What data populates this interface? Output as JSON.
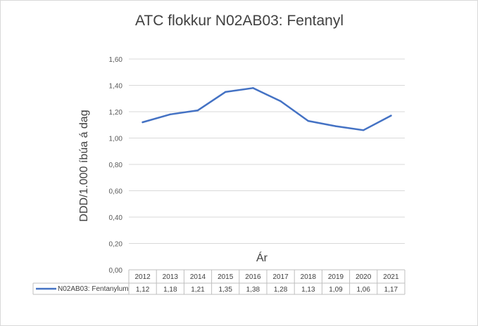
{
  "chart_data": {
    "type": "line",
    "title": "ATC flokkur N02AB03: Fentanyl",
    "xlabel": "Ár",
    "ylabel": "DDD/1.000 íbúa á dag",
    "ylim": [
      0,
      1.6
    ],
    "yticks": [
      "0,00",
      "0,20",
      "0,40",
      "0,60",
      "0,80",
      "1,00",
      "1,20",
      "1,40",
      "1,60"
    ],
    "grid": true,
    "legend": "data-table",
    "categories": [
      "2012",
      "2013",
      "2014",
      "2015",
      "2016",
      "2017",
      "2018",
      "2019",
      "2020",
      "2021"
    ],
    "series": [
      {
        "name": "N02AB03: Fentanylum",
        "color": "#4472c4",
        "values": [
          1.12,
          1.18,
          1.21,
          1.35,
          1.38,
          1.28,
          1.13,
          1.09,
          1.06,
          1.17
        ],
        "labels": [
          "1,12",
          "1,18",
          "1,21",
          "1,35",
          "1,38",
          "1,28",
          "1,13",
          "1,09",
          "1,06",
          "1,17"
        ]
      }
    ]
  }
}
